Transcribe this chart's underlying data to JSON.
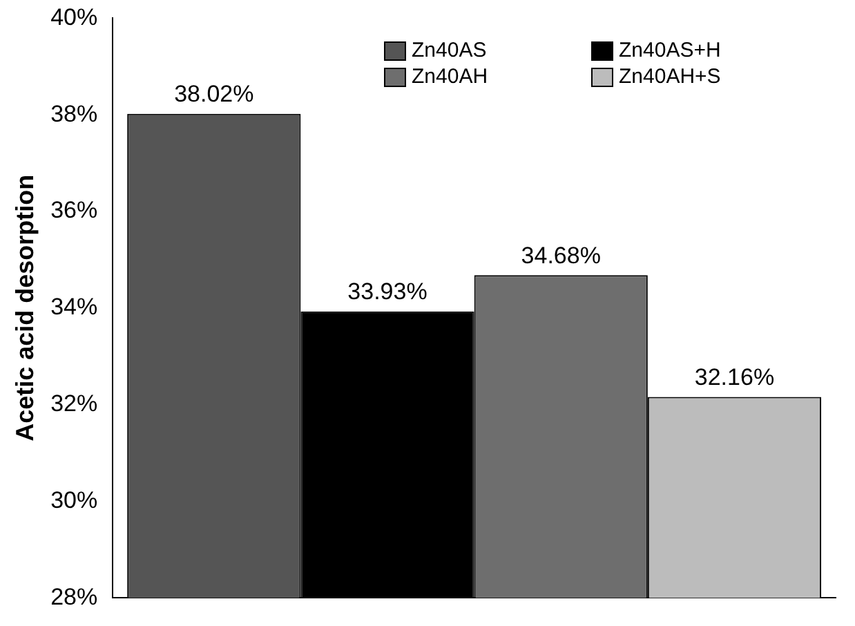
{
  "chart_data": {
    "type": "bar",
    "ylabel": "Acetic acid desorption",
    "categories": [
      null
    ],
    "series": [
      {
        "name": "Zn40AS",
        "color": "#555555",
        "values": [
          38.02
        ],
        "value_labels": [
          "38.02%"
        ]
      },
      {
        "name": "Zn40AS+H",
        "color": "#000000",
        "values": [
          33.93
        ],
        "value_labels": [
          "33.93%"
        ]
      },
      {
        "name": "Zn40AH",
        "color": "#6e6e6e",
        "values": [
          34.68
        ],
        "value_labels": [
          "34.68%"
        ]
      },
      {
        "name": "Zn40AH+S",
        "color": "#bcbcbc",
        "values": [
          32.16
        ],
        "value_labels": [
          "32.16%"
        ]
      }
    ],
    "ylim": [
      28,
      40
    ],
    "yticks": [
      {
        "value": 28,
        "label": "28%"
      },
      {
        "value": 30,
        "label": "30%"
      },
      {
        "value": 32,
        "label": "32%"
      },
      {
        "value": 34,
        "label": "34%"
      },
      {
        "value": 36,
        "label": "36%"
      },
      {
        "value": 38,
        "label": "38%"
      },
      {
        "value": 40,
        "label": "40%"
      }
    ],
    "grid": false,
    "legend": "top right"
  }
}
